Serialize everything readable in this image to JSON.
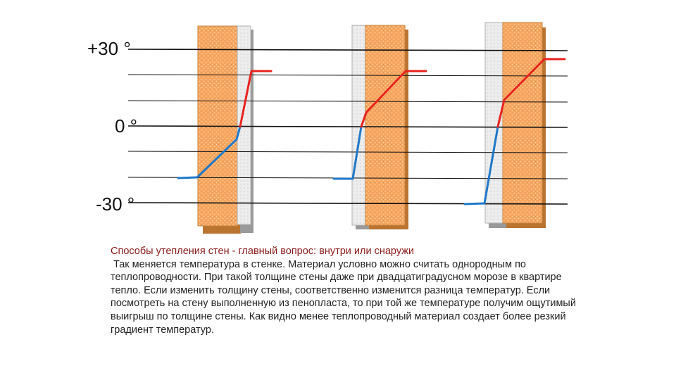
{
  "axis": {
    "top_label": "+30 °",
    "mid_label": "0 °",
    "bottom_label": "-30 °"
  },
  "diagram": {
    "temperature_range": [
      -30,
      30
    ],
    "colors": {
      "brick": "#f6a55e",
      "brick_pattern": "#ffd0a0",
      "brick_edge": "#b9742f",
      "insulation": "#e6e6e6",
      "insulation_edge": "#9a9a9a",
      "cold_line": "#1f78c8",
      "warm_line": "#e8231d",
      "grid_line": "#111111"
    },
    "walls": [
      {
        "name": "interior-insulation",
        "insulation_side": "inside"
      },
      {
        "name": "exterior-insulation",
        "insulation_side": "outside"
      },
      {
        "name": "exterior-insulation-thicker",
        "insulation_side": "outside"
      }
    ]
  },
  "caption": {
    "title": "Способы утепления стен - главный вопрос: внутри или снаружи",
    "body": "Так меняется температура  в стенке. Материал условно можно считать однородным по теплопроводности. При такой толщине стены даже при двадцатиградусном морозе в квартире тепло. Если изменить толщину стены, соответственно изменится разница температур. Если посмотреть на стену выполненную из пенопласта, то при той же температуре получим ощутимый выигрыш по толщине стены. Как видно менее теплопроводный материал создает более резкий градиент температур."
  }
}
